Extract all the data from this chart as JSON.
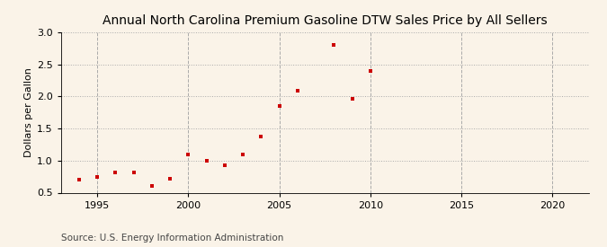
{
  "title": "Annual North Carolina Premium Gasoline DTW Sales Price by All Sellers",
  "ylabel": "Dollars per Gallon",
  "source": "Source: U.S. Energy Information Administration",
  "years": [
    1994,
    1995,
    1996,
    1997,
    1998,
    1999,
    2000,
    2001,
    2002,
    2003,
    2004,
    2005,
    2006,
    2008,
    2009,
    2010
  ],
  "values": [
    0.7,
    0.75,
    0.82,
    0.82,
    0.61,
    0.71,
    1.09,
    0.99,
    0.92,
    1.09,
    1.38,
    1.85,
    2.09,
    2.8,
    1.96,
    2.39
  ],
  "xlim": [
    1993,
    2022
  ],
  "ylim": [
    0.5,
    3.0
  ],
  "xticks": [
    1995,
    2000,
    2005,
    2010,
    2015,
    2020
  ],
  "yticks": [
    0.5,
    1.0,
    1.5,
    2.0,
    2.5,
    3.0
  ],
  "marker_color": "#cc0000",
  "marker": "s",
  "marker_size": 3.5,
  "background_color": "#faf3e8",
  "grid_h_color": "#aaaaaa",
  "grid_v_color": "#aaaaaa",
  "title_fontsize": 10,
  "label_fontsize": 8,
  "tick_fontsize": 8,
  "source_fontsize": 7.5
}
